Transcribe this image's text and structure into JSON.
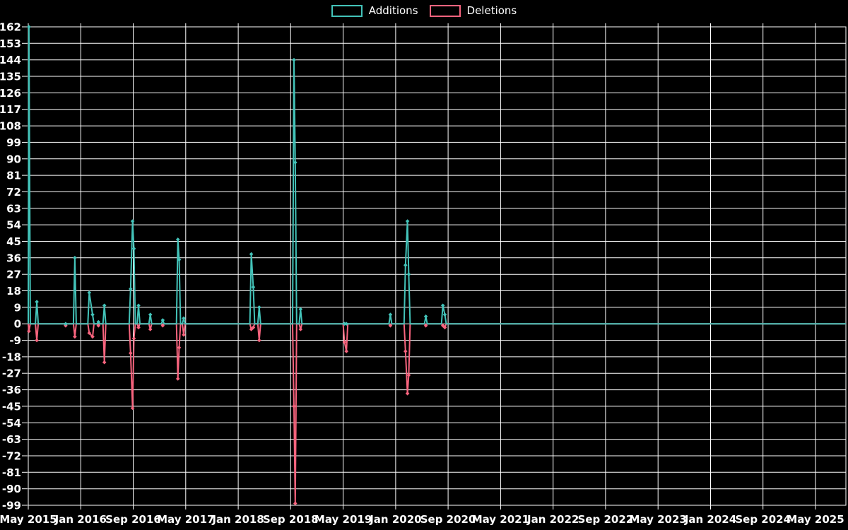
{
  "legend": [
    {
      "label": "Additions",
      "color": "#43C3B9"
    },
    {
      "label": "Deletions",
      "color": "#F8647E"
    }
  ],
  "colors": {
    "background": "#000000",
    "grid": "#FFFFFF",
    "text": "#FFFFFF",
    "additions": "#43C3B9",
    "deletions": "#F8647E"
  },
  "chart_data": {
    "type": "line",
    "title": "",
    "xlabel": "",
    "ylabel": "",
    "legend_position": "top-center",
    "grid": true,
    "x_unit": "months since May 2015",
    "x_axis": {
      "tick_labels": [
        "May 2015",
        "Jan 2016",
        "Sep 2016",
        "May 2017",
        "Jan 2018",
        "Sep 2018",
        "May 2019",
        "Jan 2020",
        "Sep 2020",
        "May 2021",
        "Jan 2022",
        "Sep 2022",
        "May 2023",
        "Jan 2024",
        "Sep 2024",
        "May 2025"
      ],
      "tick_spacing_months": 8,
      "range_months": [
        0,
        124.6
      ]
    },
    "y_axis": {
      "min": -99,
      "max": 162,
      "step": 9,
      "tick_labels": [
        "162",
        "153",
        "144",
        "135",
        "126",
        "117",
        "108",
        "99",
        "90",
        "81",
        "72",
        "63",
        "54",
        "45",
        "36",
        "27",
        "18",
        "9",
        "0",
        "-9",
        "-18",
        "-27",
        "-36",
        "-45",
        "-54",
        "-63",
        "-72",
        "-81",
        "-90",
        "-99"
      ]
    },
    "baseline": 0,
    "series": [
      {
        "name": "Additions",
        "color": "#43C3B9",
        "points": [
          [
            0.1,
            162
          ],
          [
            1.3,
            12
          ],
          [
            5.7,
            0
          ],
          [
            7.1,
            36
          ],
          [
            9.3,
            17
          ],
          [
            9.8,
            5
          ],
          [
            10.7,
            1
          ],
          [
            11.6,
            10
          ],
          [
            15.6,
            19
          ],
          [
            15.9,
            56
          ],
          [
            16.1,
            41
          ],
          [
            16.8,
            10
          ],
          [
            18.6,
            5
          ],
          [
            20.5,
            2
          ],
          [
            22.8,
            46
          ],
          [
            23.0,
            35
          ],
          [
            23.7,
            3
          ],
          [
            34.0,
            38
          ],
          [
            34.3,
            20
          ],
          [
            35.2,
            9
          ],
          [
            40.5,
            144
          ],
          [
            40.7,
            88
          ],
          [
            41.5,
            8
          ],
          [
            48.2,
            0
          ],
          [
            48.5,
            0
          ],
          [
            55.2,
            5
          ],
          [
            57.5,
            32
          ],
          [
            57.8,
            56
          ],
          [
            58.0,
            27
          ],
          [
            60.6,
            4
          ],
          [
            63.2,
            10
          ],
          [
            63.5,
            5
          ]
        ]
      },
      {
        "name": "Deletions",
        "color": "#F8647E",
        "points": [
          [
            0.1,
            -4
          ],
          [
            1.3,
            -9
          ],
          [
            5.7,
            -1
          ],
          [
            7.1,
            -7
          ],
          [
            9.3,
            -5
          ],
          [
            9.8,
            -7
          ],
          [
            10.7,
            -1
          ],
          [
            11.6,
            -21
          ],
          [
            15.6,
            -16
          ],
          [
            15.9,
            -46
          ],
          [
            16.1,
            -8
          ],
          [
            16.8,
            -2
          ],
          [
            18.6,
            -3
          ],
          [
            20.5,
            -1
          ],
          [
            22.8,
            -30
          ],
          [
            23.0,
            -13
          ],
          [
            23.7,
            -6
          ],
          [
            34.0,
            -3
          ],
          [
            34.3,
            -2
          ],
          [
            35.2,
            -9
          ],
          [
            40.5,
            -45
          ],
          [
            40.7,
            -98
          ],
          [
            41.5,
            -3
          ],
          [
            48.2,
            -10
          ],
          [
            48.5,
            -15
          ],
          [
            55.2,
            -1
          ],
          [
            57.5,
            -15
          ],
          [
            57.8,
            -38
          ],
          [
            58.0,
            -28
          ],
          [
            60.6,
            -1
          ],
          [
            63.2,
            -1
          ],
          [
            63.5,
            -2
          ]
        ]
      }
    ]
  }
}
